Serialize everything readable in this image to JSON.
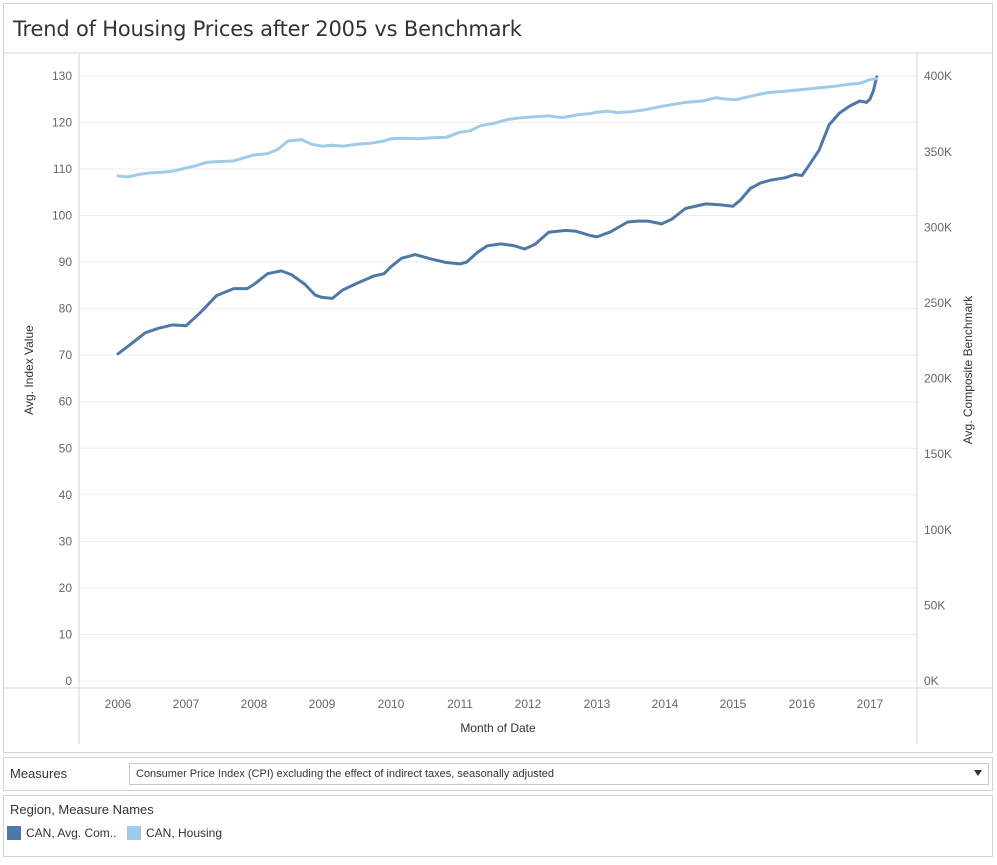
{
  "title": "Trend of Housing Prices after 2005 vs Benchmark",
  "colors": {
    "series_dark": "#4e79a7",
    "series_light": "#a0cbe8",
    "grid": "#eeeeee",
    "divider": "#d4d4d4"
  },
  "chart_data": {
    "type": "line",
    "title": "Trend of Housing Prices after 2005 vs Benchmark",
    "xlabel": "Month of Date",
    "ylabel_left": "Avg. Index Value",
    "ylabel_right": "Avg. Composite Benchmark",
    "x_ticks": [
      "2006",
      "2007",
      "2008",
      "2009",
      "2010",
      "2011",
      "2012",
      "2013",
      "2014",
      "2015",
      "2016",
      "2017"
    ],
    "y_left_ticks": [
      "0",
      "10",
      "20",
      "30",
      "40",
      "50",
      "60",
      "70",
      "80",
      "90",
      "100",
      "110",
      "120",
      "130"
    ],
    "y_right_ticks": [
      "0K",
      "50K",
      "100K",
      "150K",
      "200K",
      "250K",
      "300K",
      "350K",
      "400K"
    ],
    "ylim_left": [
      0,
      132
    ],
    "ylim_right": [
      0,
      404000
    ],
    "grid": true,
    "series": [
      {
        "name": "CAN, Avg. Com..",
        "axis": "right",
        "x": [
          2006.0,
          2006.2,
          2006.4,
          2006.6,
          2006.8,
          2007.0,
          2007.2,
          2007.45,
          2007.7,
          2007.9,
          2008.0,
          2008.2,
          2008.4,
          2008.55,
          2008.75,
          2008.9,
          2009.0,
          2009.15,
          2009.3,
          2009.5,
          2009.75,
          2009.9,
          2010.0,
          2010.15,
          2010.35,
          2010.6,
          2010.8,
          2011.0,
          2011.1,
          2011.25,
          2011.4,
          2011.6,
          2011.8,
          2011.95,
          2012.1,
          2012.3,
          2012.55,
          2012.7,
          2012.9,
          2013.0,
          2013.2,
          2013.45,
          2013.6,
          2013.75,
          2013.95,
          2014.1,
          2014.3,
          2014.6,
          2014.8,
          2015.0,
          2015.1,
          2015.25,
          2015.4,
          2015.55,
          2015.75,
          2015.9,
          2016.0,
          2016.1,
          2016.25,
          2016.4,
          2016.55,
          2016.7,
          2016.85,
          2016.95,
          2017.0,
          2017.05,
          2017.1
        ],
        "values": [
          70.3,
          72.5,
          74.8,
          75.8,
          76.5,
          76.3,
          79.0,
          82.8,
          84.3,
          84.3,
          85.2,
          87.5,
          88.1,
          87.3,
          85.2,
          82.9,
          82.4,
          82.2,
          84.0,
          85.4,
          87.0,
          87.5,
          89.0,
          90.8,
          91.6,
          90.6,
          89.9,
          89.6,
          90.0,
          92.0,
          93.5,
          93.9,
          93.5,
          92.8,
          93.8,
          96.4,
          96.8,
          96.6,
          95.7,
          95.4,
          96.5,
          98.6,
          98.8,
          98.8,
          98.2,
          99.2,
          101.5,
          102.5,
          102.3,
          102.0,
          103.2,
          105.8,
          107.0,
          107.6,
          108.1,
          108.8,
          108.6,
          110.7,
          114.0,
          119.5,
          122.0,
          123.5,
          124.6,
          124.3,
          125.0,
          126.8,
          129.8
        ]
      },
      {
        "name": "CAN, Housing",
        "axis": "left",
        "x": [
          2006.0,
          2006.15,
          2006.3,
          2006.5,
          2006.65,
          2006.8,
          2007.0,
          2007.15,
          2007.3,
          2007.5,
          2007.7,
          2007.9,
          2008.0,
          2008.2,
          2008.35,
          2008.5,
          2008.7,
          2008.85,
          2009.0,
          2009.15,
          2009.3,
          2009.5,
          2009.7,
          2009.9,
          2010.0,
          2010.2,
          2010.4,
          2010.6,
          2010.8,
          2011.0,
          2011.15,
          2011.3,
          2011.5,
          2011.7,
          2011.9,
          2012.1,
          2012.3,
          2012.5,
          2012.7,
          2012.9,
          2013.0,
          2013.15,
          2013.3,
          2013.5,
          2013.7,
          2013.9,
          2014.05,
          2014.3,
          2014.55,
          2014.75,
          2014.9,
          2015.05,
          2015.25,
          2015.5,
          2015.75,
          2015.9,
          2016.05,
          2016.3,
          2016.5,
          2016.7,
          2016.85,
          2017.0,
          2017.1
        ],
        "values": [
          108.5,
          108.3,
          108.8,
          109.2,
          109.3,
          109.5,
          110.2,
          110.7,
          111.4,
          111.6,
          111.7,
          112.6,
          113.0,
          113.3,
          114.2,
          116.0,
          116.3,
          115.3,
          114.9,
          115.1,
          114.9,
          115.3,
          115.5,
          116.0,
          116.5,
          116.6,
          116.5,
          116.7,
          116.8,
          117.9,
          118.2,
          119.3,
          119.8,
          120.6,
          121.0,
          121.2,
          121.4,
          121.0,
          121.6,
          121.9,
          122.2,
          122.4,
          122.1,
          122.3,
          122.7,
          123.3,
          123.7,
          124.3,
          124.6,
          125.3,
          125.0,
          124.9,
          125.6,
          126.4,
          126.7,
          126.9,
          127.1,
          127.5,
          127.8,
          128.2,
          128.4,
          129.2,
          129.4
        ]
      }
    ]
  },
  "filter": {
    "label": "Measures",
    "selected": "Consumer Price Index (CPI) excluding the effect of indirect taxes, seasonally adjusted"
  },
  "legend": {
    "title": "Region, Measure Names",
    "items": [
      {
        "label": "CAN, Avg. Com..",
        "color": "#4e79a7"
      },
      {
        "label": "CAN, Housing",
        "color": "#a0cbe8"
      }
    ]
  }
}
